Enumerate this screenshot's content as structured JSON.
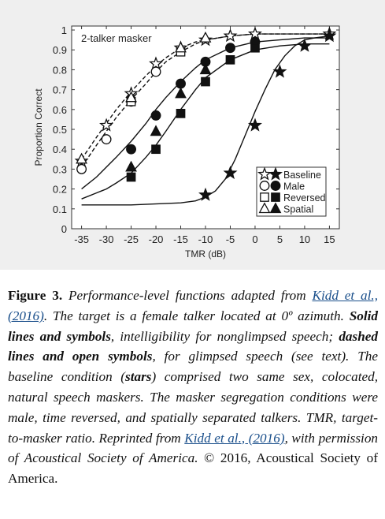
{
  "chart_data": {
    "type": "line",
    "annotation": "2-talker masker",
    "xlabel": "TMR (dB)",
    "ylabel": "Proportion Correct",
    "xlim": [
      -37,
      17
    ],
    "ylim": [
      0,
      1.02
    ],
    "xticks": [
      -35,
      -30,
      -25,
      -20,
      -15,
      -10,
      -5,
      0,
      5,
      10,
      15
    ],
    "yticks": [
      0,
      0.1,
      0.2,
      0.3,
      0.4,
      0.5,
      0.6,
      0.7,
      0.8,
      0.9,
      1
    ],
    "ytick_labels": [
      "0",
      "0.1",
      "0.2",
      "0.3",
      "0.4",
      "0.5",
      "0.6",
      "0.7",
      "0.8",
      "0.9",
      "1"
    ],
    "legend_position": "bottom-right",
    "legend": [
      "Baseline",
      "Male",
      "Reversed",
      "Spatial"
    ],
    "series": [
      {
        "condition": "Baseline",
        "speech": "nonglimpsed",
        "marker": "star",
        "filled": true,
        "x": [
          -10,
          -5,
          0,
          5,
          10,
          15
        ],
        "y": [
          0.17,
          0.28,
          0.52,
          0.79,
          0.92,
          0.97
        ],
        "fit_x": [
          -35,
          -25,
          -15,
          -12,
          -10,
          -8,
          -6,
          -4,
          -2,
          0,
          2,
          4,
          6,
          8,
          10,
          12,
          15
        ],
        "fit_y": [
          0.12,
          0.12,
          0.13,
          0.14,
          0.16,
          0.19,
          0.25,
          0.35,
          0.47,
          0.59,
          0.7,
          0.8,
          0.87,
          0.92,
          0.95,
          0.96,
          0.97
        ]
      },
      {
        "condition": "Baseline",
        "speech": "glimpsed",
        "marker": "star",
        "filled": false,
        "x": [
          -35,
          -30,
          -25,
          -20,
          -15,
          -10,
          -5,
          0,
          15
        ],
        "y": [
          0.34,
          0.52,
          0.68,
          0.83,
          0.91,
          0.95,
          0.97,
          0.98,
          0.98
        ],
        "fit_x": [
          -35,
          -32,
          -30,
          -28,
          -25,
          -22,
          -20,
          -18,
          -15,
          -12,
          -10,
          -5,
          0,
          5,
          10,
          15
        ],
        "fit_y": [
          0.35,
          0.46,
          0.53,
          0.6,
          0.69,
          0.77,
          0.82,
          0.86,
          0.91,
          0.94,
          0.95,
          0.97,
          0.98,
          0.98,
          0.98,
          0.98
        ]
      },
      {
        "condition": "Male",
        "speech": "glimpsed",
        "marker": "circle",
        "filled": false,
        "x": [
          -35,
          -30,
          -25,
          -20
        ],
        "y": [
          0.3,
          0.45,
          0.64,
          0.79
        ],
        "fit_x": [
          -35,
          -32,
          -30,
          -28,
          -25,
          -22,
          -20,
          -18,
          -15,
          -12,
          -10,
          -5,
          0,
          5,
          10,
          15
        ],
        "fit_y": [
          0.31,
          0.42,
          0.49,
          0.56,
          0.65,
          0.73,
          0.79,
          0.84,
          0.89,
          0.93,
          0.95,
          0.97,
          0.98,
          0.98,
          0.98,
          0.98
        ]
      },
      {
        "condition": "Male",
        "speech": "nonglimpsed",
        "marker": "circle",
        "filled": true,
        "x": [
          -25,
          -20,
          -15,
          -10,
          -5,
          0
        ],
        "y": [
          0.4,
          0.57,
          0.73,
          0.84,
          0.91,
          0.94
        ],
        "fit_x": [
          -35,
          -32,
          -30,
          -28,
          -25,
          -22,
          -20,
          -18,
          -15,
          -12,
          -10,
          -5,
          0,
          5,
          10,
          15
        ],
        "fit_y": [
          0.2,
          0.26,
          0.31,
          0.36,
          0.44,
          0.53,
          0.6,
          0.66,
          0.74,
          0.81,
          0.85,
          0.91,
          0.94,
          0.95,
          0.96,
          0.96
        ]
      },
      {
        "condition": "Reversed",
        "speech": "glimpsed",
        "marker": "square",
        "filled": false,
        "x": [
          -25,
          -15
        ],
        "y": [
          0.64,
          0.89
        ],
        "fit_x": [],
        "fit_y": []
      },
      {
        "condition": "Reversed",
        "speech": "nonglimpsed",
        "marker": "square",
        "filled": true,
        "x": [
          -25,
          -20,
          -15,
          -10,
          -5,
          0
        ],
        "y": [
          0.26,
          0.4,
          0.58,
          0.74,
          0.85,
          0.91
        ],
        "fit_x": [
          -35,
          -32,
          -30,
          -28,
          -25,
          -22,
          -20,
          -18,
          -15,
          -12,
          -10,
          -5,
          0,
          5,
          10,
          15
        ],
        "fit_y": [
          0.15,
          0.18,
          0.2,
          0.23,
          0.28,
          0.36,
          0.42,
          0.49,
          0.6,
          0.7,
          0.76,
          0.85,
          0.9,
          0.92,
          0.93,
          0.93
        ]
      },
      {
        "condition": "Spatial",
        "speech": "glimpsed",
        "marker": "triangle",
        "filled": false,
        "x": [
          -35,
          -25,
          -15,
          -10
        ],
        "y": [
          0.35,
          0.66,
          0.91,
          0.96
        ],
        "fit_x": [],
        "fit_y": []
      },
      {
        "condition": "Spatial",
        "speech": "nonglimpsed",
        "marker": "triangle",
        "filled": true,
        "x": [
          -25,
          -20,
          -15,
          -10
        ],
        "y": [
          0.31,
          0.49,
          0.68,
          0.8
        ],
        "fit_x": [],
        "fit_y": []
      }
    ]
  },
  "caption": {
    "label": "Figure 3.",
    "t1": " Performance-level functions adapted from ",
    "link1": "Kidd et al., (2016)",
    "t2": ". The target is a female talker located at 0º azimuth. ",
    "b1": "Solid lines and symbols",
    "t3": ", intelligibility for nonglimpsed speech; ",
    "b2": "dashed lines and open symbols",
    "t4": ", for glimpsed speech (see text). The baseline condition (",
    "b3": "stars",
    "t5": ") comprised two same sex, colocated, natural speech maskers. The masker segregation conditions were male, time reversed, and spatially separated talkers. TMR, target-to-masker ratio. Reprinted from ",
    "link2": "Kidd et al., (2016)",
    "t6": ", with permission of Acoustical Society of America. ",
    "t7": "© 2016, Acoustical Society of America."
  }
}
